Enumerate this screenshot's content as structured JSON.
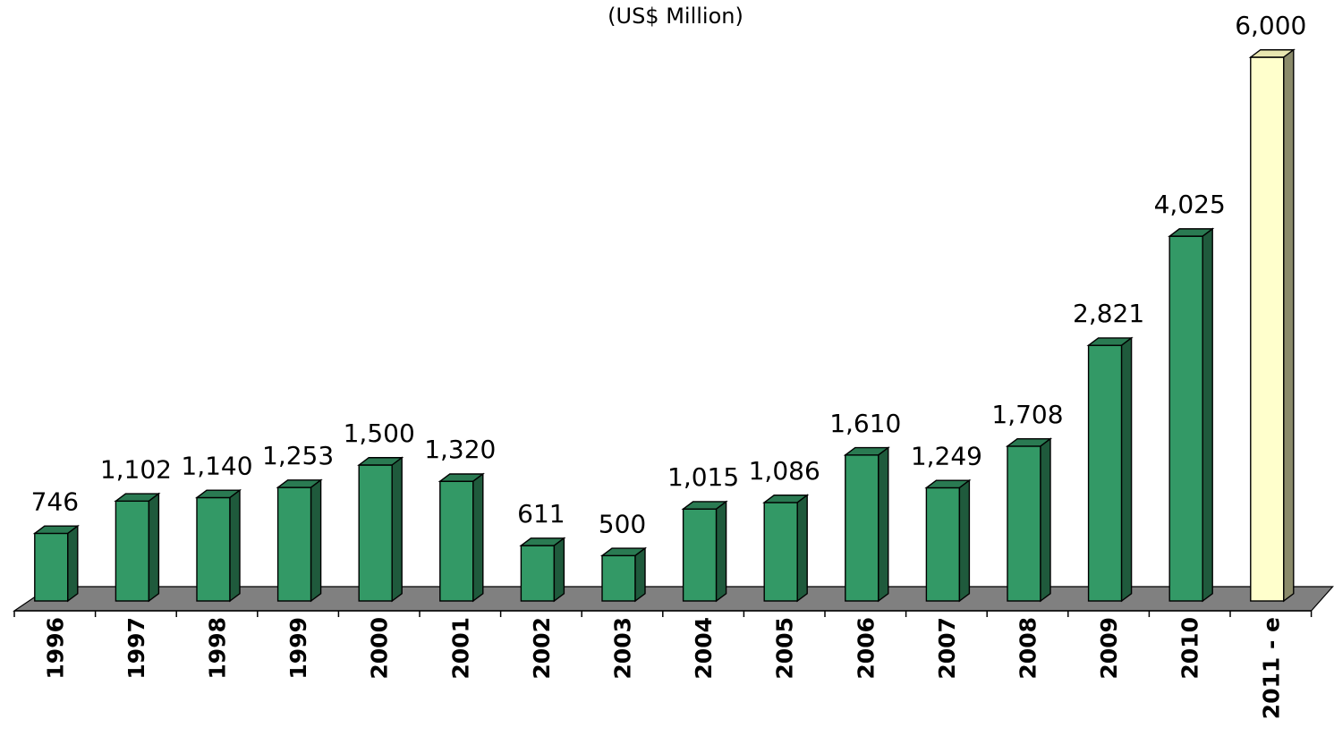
{
  "chart_data": {
    "type": "bar",
    "subtitle": "(US$ Million)",
    "categories": [
      "1996",
      "1997",
      "1998",
      "1999",
      "2000",
      "2001",
      "2002",
      "2003",
      "2004",
      "2005",
      "2006",
      "2007",
      "2008",
      "2009",
      "2010",
      "2011 - e"
    ],
    "values": [
      746,
      1102,
      1140,
      1253,
      1500,
      1320,
      611,
      500,
      1015,
      1086,
      1610,
      1249,
      1708,
      2821,
      4025,
      6000
    ],
    "value_labels": [
      "746",
      "1,102",
      "1,140",
      "1,253",
      "1,500",
      "1,320",
      "611",
      "500",
      "1,015",
      "1,086",
      "1,610",
      "1,249",
      "1,708",
      "2,821",
      "4,025",
      "6,000"
    ],
    "ylim": [
      0,
      6000
    ],
    "grid": false,
    "legend": "none",
    "three_d": true,
    "colors": {
      "bar_front": "#339966",
      "bar_top": "#2a7a52",
      "bar_side": "#1f5a3c",
      "highlight_front": "#ffffcc",
      "highlight_top": "#e8e6b0",
      "highlight_side": "#8a8a6a",
      "floor": "#808080"
    },
    "highlight_index": 15
  }
}
